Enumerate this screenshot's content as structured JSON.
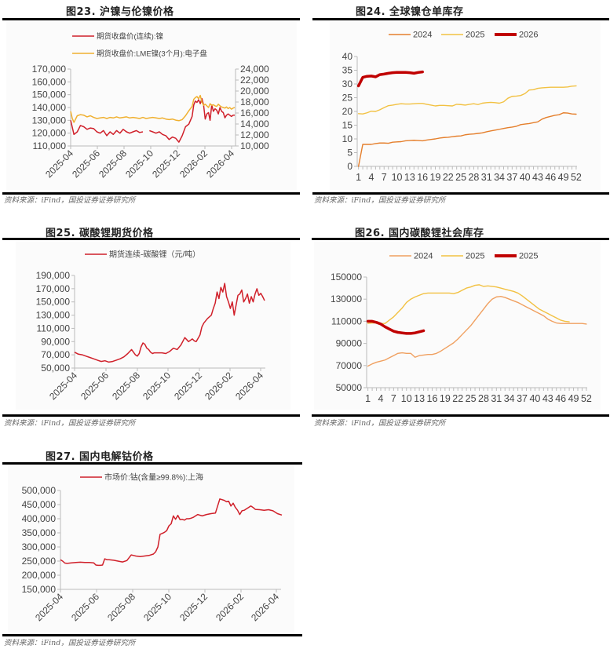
{
  "source_text": "资料来源：iFind，国投证券证券研究所",
  "chart_data": [
    {
      "id": "fig23",
      "type": "line",
      "title": "图23. 沪镍与伦镍价格",
      "dual_axis": true,
      "x_ticks": [
        "2025-04",
        "2025-06",
        "2025-08",
        "2025-10",
        "2025-12",
        "2026-02",
        "2026-04"
      ],
      "y_left": {
        "ticks": [
          "110,000",
          "120,000",
          "130,000",
          "140,000",
          "150,000",
          "160,000",
          "170,000"
        ],
        "range": [
          110000,
          170000
        ]
      },
      "y_right": {
        "ticks": [
          "10,000",
          "12,000",
          "14,000",
          "16,000",
          "18,000",
          "20,000",
          "22,000",
          "24,000"
        ],
        "range": [
          10000,
          24000
        ]
      },
      "series": [
        {
          "name": "期货收盘价(连续):镍",
          "axis": "left",
          "color": "#d0202a",
          "x": [
            0.0,
            0.02,
            0.04,
            0.06,
            0.08,
            0.1,
            0.12,
            0.14,
            0.16,
            0.18,
            0.2,
            0.22,
            0.24,
            0.26,
            0.28,
            0.3,
            0.32,
            0.34,
            0.36,
            0.38,
            0.4,
            0.42,
            0.44,
            0.46,
            0.48,
            0.5,
            0.52,
            0.54,
            0.56,
            0.58,
            0.6,
            0.62,
            0.64,
            0.66,
            0.68,
            0.7,
            0.72,
            0.74,
            0.75,
            0.76,
            0.77,
            0.78,
            0.79,
            0.8,
            0.81,
            0.82,
            0.83,
            0.84,
            0.85,
            0.86,
            0.87,
            0.88,
            0.89,
            0.9,
            0.91,
            0.92,
            0.93,
            0.94,
            0.95,
            0.96,
            0.97,
            0.98,
            0.99,
            1.0
          ],
          "y": [
            130000,
            119000,
            121000,
            126000,
            125000,
            123000,
            124000,
            123500,
            121000,
            120000,
            122000,
            118000,
            121000,
            119000,
            122000,
            120000,
            123000,
            121000,
            120000,
            121000,
            122000,
            120500,
            121000,
            null,
            122000,
            121000,
            120000,
            121000,
            119000,
            118000,
            115000,
            117000,
            116000,
            113000,
            118000,
            125000,
            127000,
            133000,
            142000,
            145000,
            144000,
            146000,
            143000,
            147000,
            142000,
            131000,
            135000,
            136000,
            130000,
            142000,
            137000,
            139000,
            138000,
            135000,
            140000,
            137000,
            136000,
            132000,
            134000,
            135000,
            134000,
            133000,
            134000,
            134000
          ]
        },
        {
          "name": "期货收盘价:LME镍(3个月):电子盘",
          "axis": "right",
          "color": "#f0b030",
          "x": [
            0.0,
            0.01,
            0.02,
            0.04,
            0.06,
            0.08,
            0.1,
            0.12,
            0.14,
            0.16,
            0.18,
            0.2,
            0.22,
            0.24,
            0.26,
            0.28,
            0.3,
            0.32,
            0.34,
            0.36,
            0.38,
            0.4,
            0.42,
            0.44,
            0.46,
            0.48,
            0.5,
            0.52,
            0.54,
            0.56,
            0.58,
            0.6,
            0.62,
            0.64,
            0.66,
            0.68,
            0.7,
            0.72,
            0.74,
            0.75,
            0.76,
            0.77,
            0.78,
            0.79,
            0.8,
            0.81,
            0.82,
            0.83,
            0.84,
            0.85,
            0.86,
            0.87,
            0.88,
            0.89,
            0.9,
            0.91,
            0.92,
            0.93,
            0.94,
            0.95,
            0.96,
            0.97,
            0.98,
            0.99,
            1.0
          ],
          "y": [
            16300,
            15000,
            14300,
            15500,
            15700,
            15600,
            15300,
            15500,
            15200,
            15000,
            15100,
            15200,
            15000,
            15200,
            15100,
            15300,
            15100,
            15200,
            15300,
            15100,
            15200,
            15100,
            15000,
            15200,
            15000,
            15100,
            15200,
            15100,
            15000,
            15100,
            14900,
            14800,
            14900,
            14700,
            14600,
            14800,
            15500,
            16400,
            17200,
            18500,
            18800,
            19000,
            18600,
            19200,
            18000,
            17400,
            17600,
            17300,
            17000,
            17700,
            17400,
            17500,
            17300,
            17200,
            17600,
            17300,
            17100,
            17000,
            16900,
            17100,
            16800,
            17000,
            16700,
            16900,
            17000
          ]
        }
      ]
    },
    {
      "id": "fig24",
      "type": "line",
      "title": "图24. 全球镍仓单库存",
      "x_ticks": [
        "1",
        "4",
        "7",
        "10",
        "13",
        "16",
        "19",
        "22",
        "25",
        "28",
        "31",
        "34",
        "37",
        "40",
        "43",
        "46",
        "49",
        "52"
      ],
      "y_ticks": [
        "0",
        "5",
        "10",
        "15",
        "20",
        "25",
        "30",
        "35",
        "40"
      ],
      "ylim": [
        0,
        40
      ],
      "series": [
        {
          "name": "2024",
          "color": "#e57f2c",
          "width": 1.4,
          "y": [
            0,
            8,
            8,
            8,
            8.3,
            8.5,
            8.5,
            8.4,
            8.8,
            8.9,
            9,
            9.3,
            9.4,
            9.5,
            9.4,
            9.3,
            9.6,
            9.8,
            10,
            10.3,
            10.5,
            10.6,
            10.8,
            11,
            11.1,
            11.5,
            11.7,
            11.8,
            12,
            12.2,
            12.6,
            12.9,
            13.2,
            13.5,
            13.8,
            14.1,
            14.3,
            14.6,
            15.2,
            15.4,
            15.6,
            15.9,
            16.2,
            17.2,
            17.8,
            18.2,
            18.6,
            18.8,
            19.5,
            19.4,
            19.1,
            19
          ]
        },
        {
          "name": "2025",
          "color": "#f2c142",
          "width": 1.4,
          "y": [
            19.2,
            19.1,
            19.5,
            20.1,
            20,
            20.6,
            21.4,
            22.1,
            22.3,
            22.6,
            22.8,
            22.7,
            22.7,
            22.8,
            22.9,
            22.9,
            22.6,
            22.3,
            22,
            22.2,
            22.2,
            22.1,
            22,
            22.6,
            22.5,
            22.3,
            22.6,
            22.8,
            22.5,
            23,
            23.2,
            23.3,
            23.2,
            23,
            23.5,
            24.8,
            25.5,
            25.6,
            25.8,
            26.5,
            27.8,
            27.9,
            28.4,
            28.6,
            28.7,
            28.8,
            28.8,
            28.8,
            28.8,
            28.9,
            29.2,
            29.3
          ]
        },
        {
          "name": "2026",
          "color": "#c00000",
          "width": 3.5,
          "y": [
            29.3,
            32.4,
            32.8,
            32.9,
            32.6,
            33.4,
            33.6,
            33.9,
            34.1,
            34.2,
            34.2,
            34.2,
            34.1,
            33.9,
            34.2,
            34.4
          ]
        }
      ]
    },
    {
      "id": "fig25",
      "type": "line",
      "title": "图25. 碳酸锂期货价格",
      "x_ticks": [
        "2025-04",
        "2025-06",
        "2025-08",
        "2025-10",
        "2025-12",
        "2026-02",
        "2026-04"
      ],
      "y_ticks": [
        "50,000",
        "70,000",
        "90,000",
        "110,000",
        "130,000",
        "150,000",
        "170,000",
        "190,000"
      ],
      "ylim": [
        50000,
        190000
      ],
      "series": [
        {
          "name": "期货连续-碳酸锂（元/吨）",
          "color": "#d0202a",
          "x": [
            0.0,
            0.02,
            0.04,
            0.06,
            0.08,
            0.1,
            0.12,
            0.14,
            0.16,
            0.18,
            0.2,
            0.22,
            0.24,
            0.26,
            0.28,
            0.3,
            0.32,
            0.33,
            0.34,
            0.35,
            0.36,
            0.37,
            0.38,
            0.39,
            0.4,
            0.41,
            0.42,
            0.44,
            0.46,
            0.48,
            0.5,
            0.52,
            0.54,
            0.56,
            0.58,
            0.6,
            0.62,
            0.63,
            0.64,
            0.65,
            0.66,
            0.67,
            0.68,
            0.7,
            0.72,
            0.73,
            0.74,
            0.75,
            0.76,
            0.77,
            0.78,
            0.79,
            0.8,
            0.81,
            0.82,
            0.83,
            0.84,
            0.85,
            0.86,
            0.87,
            0.88,
            0.89,
            0.9,
            0.91,
            0.92,
            0.93,
            0.94,
            0.95,
            0.96,
            0.97,
            0.98,
            0.99,
            1.0
          ],
          "y": [
            74000,
            71000,
            70000,
            68000,
            66000,
            64000,
            62000,
            60000,
            61000,
            59000,
            60000,
            62000,
            64000,
            67000,
            72000,
            78000,
            70000,
            68000,
            72000,
            82000,
            88000,
            86000,
            80000,
            78000,
            74000,
            72000,
            73000,
            73000,
            73000,
            72000,
            75000,
            80000,
            78000,
            85000,
            96000,
            90000,
            94000,
            91000,
            90000,
            95000,
            100000,
            112000,
            118000,
            125000,
            130000,
            140000,
            148000,
            165000,
            155000,
            172000,
            165000,
            178000,
            158000,
            150000,
            140000,
            150000,
            130000,
            145000,
            160000,
            162000,
            168000,
            150000,
            155000,
            162000,
            148000,
            158000,
            150000,
            162000,
            170000,
            160000,
            163000,
            158000,
            152000
          ]
        }
      ]
    },
    {
      "id": "fig26",
      "type": "line",
      "title": "图26. 国内碳酸锂社会库存",
      "x_ticks": [
        "1",
        "4",
        "7",
        "10",
        "13",
        "16",
        "19",
        "22",
        "25",
        "28",
        "31",
        "34",
        "37",
        "40",
        "43",
        "46",
        "49",
        "52"
      ],
      "y_ticks": [
        "50000",
        "70000",
        "90000",
        "110000",
        "130000",
        "150000"
      ],
      "ylim": [
        50000,
        150000
      ],
      "series": [
        {
          "name": "2024",
          "color": "#f0a060",
          "width": 1.4,
          "y": [
            69500,
            71500,
            73000,
            74000,
            75000,
            77000,
            79000,
            81000,
            81500,
            81000,
            81000,
            77500,
            79000,
            79500,
            80000,
            80000,
            81000,
            83000,
            85500,
            88000,
            90500,
            94000,
            98000,
            102000,
            106000,
            111000,
            116000,
            121000,
            126000,
            130000,
            132000,
            132500,
            131500,
            130000,
            128500,
            127000,
            125000,
            123000,
            121000,
            119000,
            117000,
            115000,
            112000,
            110000,
            108500,
            108000,
            108000,
            108000,
            108000,
            108000,
            108000,
            107500
          ]
        },
        {
          "name": "2025",
          "color": "#f2c142",
          "width": 1.4,
          "y": [
            108000,
            108500,
            108500,
            108000,
            108000,
            111000,
            114000,
            118000,
            122000,
            127000,
            130000,
            132000,
            133500,
            135000,
            135500,
            135500,
            135500,
            135500,
            135500,
            135500,
            135000,
            136000,
            138000,
            140000,
            141000,
            142500,
            143000,
            141500,
            142000,
            141500,
            141000,
            140000,
            139000,
            138000,
            137000,
            135500,
            133000,
            130000,
            127000,
            124000,
            121000,
            119000,
            117000,
            115000,
            113000,
            111000,
            110000,
            109500
          ]
        },
        {
          "name": "2025",
          "color": "#c00000",
          "width": 3.5,
          "y": [
            110000,
            110000,
            109000,
            107500,
            105000,
            103000,
            101000,
            100000,
            99500,
            99000,
            99000,
            99500,
            100500,
            101500
          ]
        }
      ]
    },
    {
      "id": "fig27",
      "type": "line",
      "title": "图27. 国内电解钴价格",
      "x_ticks": [
        "2025-04",
        "2025-06",
        "2025-08",
        "2025-10",
        "2025-12",
        "2026-02",
        "2026-04"
      ],
      "y_ticks": [
        "150,000",
        "200,000",
        "250,000",
        "300,000",
        "350,000",
        "400,000",
        "450,000",
        "500,000"
      ],
      "ylim": [
        150000,
        500000
      ],
      "series": [
        {
          "name": "市场价:钴(含量≥99.8%):上海",
          "color": "#d0202a",
          "x": [
            0.0,
            0.01,
            0.02,
            0.03,
            0.05,
            0.07,
            0.09,
            0.11,
            0.13,
            0.15,
            0.16,
            0.17,
            0.18,
            0.19,
            0.2,
            0.21,
            0.22,
            0.24,
            0.26,
            0.28,
            0.3,
            0.31,
            0.32,
            0.33,
            0.34,
            0.36,
            0.38,
            0.4,
            0.42,
            0.43,
            0.44,
            0.45,
            0.46,
            0.47,
            0.48,
            0.49,
            0.5,
            0.51,
            0.52,
            0.53,
            0.54,
            0.55,
            0.56,
            0.57,
            0.58,
            0.59,
            0.6,
            0.62,
            0.64,
            0.66,
            0.68,
            0.7,
            0.72,
            0.74,
            0.75,
            0.76,
            0.77,
            0.78,
            0.79,
            0.8,
            0.81,
            0.82,
            0.83,
            0.84,
            0.85,
            0.86,
            0.87,
            0.88,
            0.9,
            0.92,
            0.94,
            0.96,
            0.98,
            1.0
          ],
          "y": [
            255000,
            250000,
            243000,
            242000,
            244000,
            245000,
            246000,
            245000,
            245000,
            244000,
            236000,
            235000,
            235000,
            236000,
            258000,
            255000,
            255000,
            253000,
            250000,
            247000,
            252000,
            262000,
            272000,
            270000,
            268000,
            266000,
            268000,
            270000,
            275000,
            283000,
            300000,
            345000,
            348000,
            352000,
            358000,
            375000,
            382000,
            410000,
            398000,
            412000,
            397000,
            398000,
            395000,
            400000,
            400000,
            402000,
            405000,
            415000,
            410000,
            415000,
            418000,
            420000,
            470000,
            465000,
            460000,
            462000,
            445000,
            455000,
            440000,
            430000,
            415000,
            428000,
            430000,
            435000,
            440000,
            445000,
            440000,
            433000,
            432000,
            430000,
            432000,
            428000,
            418000,
            413000
          ]
        }
      ]
    }
  ]
}
